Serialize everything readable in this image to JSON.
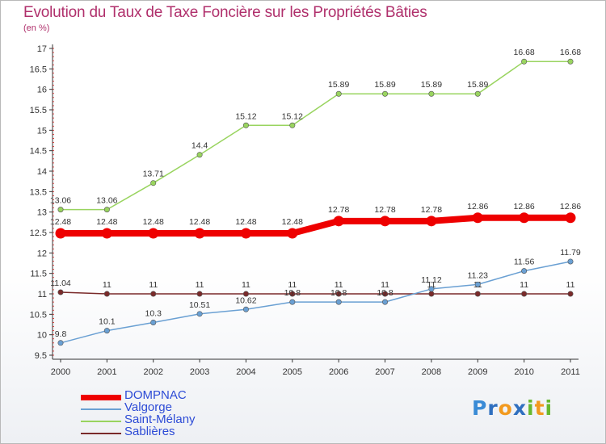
{
  "title": "Evolution du Taux de Taxe Foncière sur les Propriétés Bâties",
  "subtitle": "(en %)",
  "logo": {
    "letters": [
      "P",
      "r",
      "o",
      "x",
      "i",
      "t",
      "i"
    ],
    "colors": [
      "#3a8bd6",
      "#2f6fbf",
      "#f29a1f",
      "#2f6fbf",
      "#67b82f",
      "#f29a1f",
      "#67b82f"
    ]
  },
  "chart_data": {
    "type": "line",
    "title": "Evolution du Taux de Taxe Foncière sur les Propriétés Bâties",
    "ylabel": "(en %)",
    "xlabel": "",
    "categories": [
      "2000",
      "2001",
      "2002",
      "2003",
      "2004",
      "2005",
      "2006",
      "2007",
      "2008",
      "2009",
      "2010",
      "2011"
    ],
    "ylim": [
      9.5,
      17
    ],
    "yticks": [
      "9.5",
      "10",
      "10.5",
      "11",
      "11.5",
      "12",
      "12.5",
      "13",
      "13.5",
      "14",
      "14.5",
      "15",
      "15.5",
      "16",
      "16.5",
      "17"
    ],
    "legend_position": "bottom-left",
    "series": [
      {
        "name": "DOMPNAC",
        "color": "#ee0000",
        "values": [
          12.48,
          12.48,
          12.48,
          12.48,
          12.48,
          12.48,
          12.78,
          12.78,
          12.78,
          12.86,
          12.86,
          12.86
        ],
        "labels": [
          "12.48",
          "12.48",
          "12.48",
          "12.48",
          "12.48",
          "12.48",
          "12.78",
          "12.78",
          "12.78",
          "12.86",
          "12.86",
          "12.86"
        ]
      },
      {
        "name": "Valgorge",
        "color": "#6aa0d3",
        "values": [
          9.8,
          10.1,
          10.3,
          10.51,
          10.62,
          10.8,
          10.8,
          10.8,
          11.12,
          11.23,
          11.56,
          11.79
        ],
        "labels": [
          "9.8",
          "10.1",
          "10.3",
          "10.51",
          "10.62",
          "10.8",
          "10.8",
          "10.8",
          "11.12",
          "11.23",
          "11.56",
          "11.79"
        ]
      },
      {
        "name": "Saint-Mélany",
        "color": "#99d45f",
        "values": [
          13.06,
          13.06,
          13.71,
          14.4,
          15.12,
          15.12,
          15.89,
          15.89,
          15.89,
          15.89,
          16.68,
          16.68
        ],
        "labels": [
          "13.06",
          "13.06",
          "13.71",
          "14.4",
          "15.12",
          "15.12",
          "15.89",
          "15.89",
          "15.89",
          "15.89",
          "16.68",
          "16.68"
        ]
      },
      {
        "name": "Sablières",
        "color": "#7a2a2a",
        "values": [
          11.04,
          11,
          11,
          11,
          11,
          11,
          11,
          11,
          11,
          11,
          11,
          11
        ],
        "labels": [
          "11.04",
          "11",
          "11",
          "11",
          "11",
          "11",
          "11",
          "11",
          "11",
          "11",
          "11",
          "11"
        ]
      }
    ]
  }
}
